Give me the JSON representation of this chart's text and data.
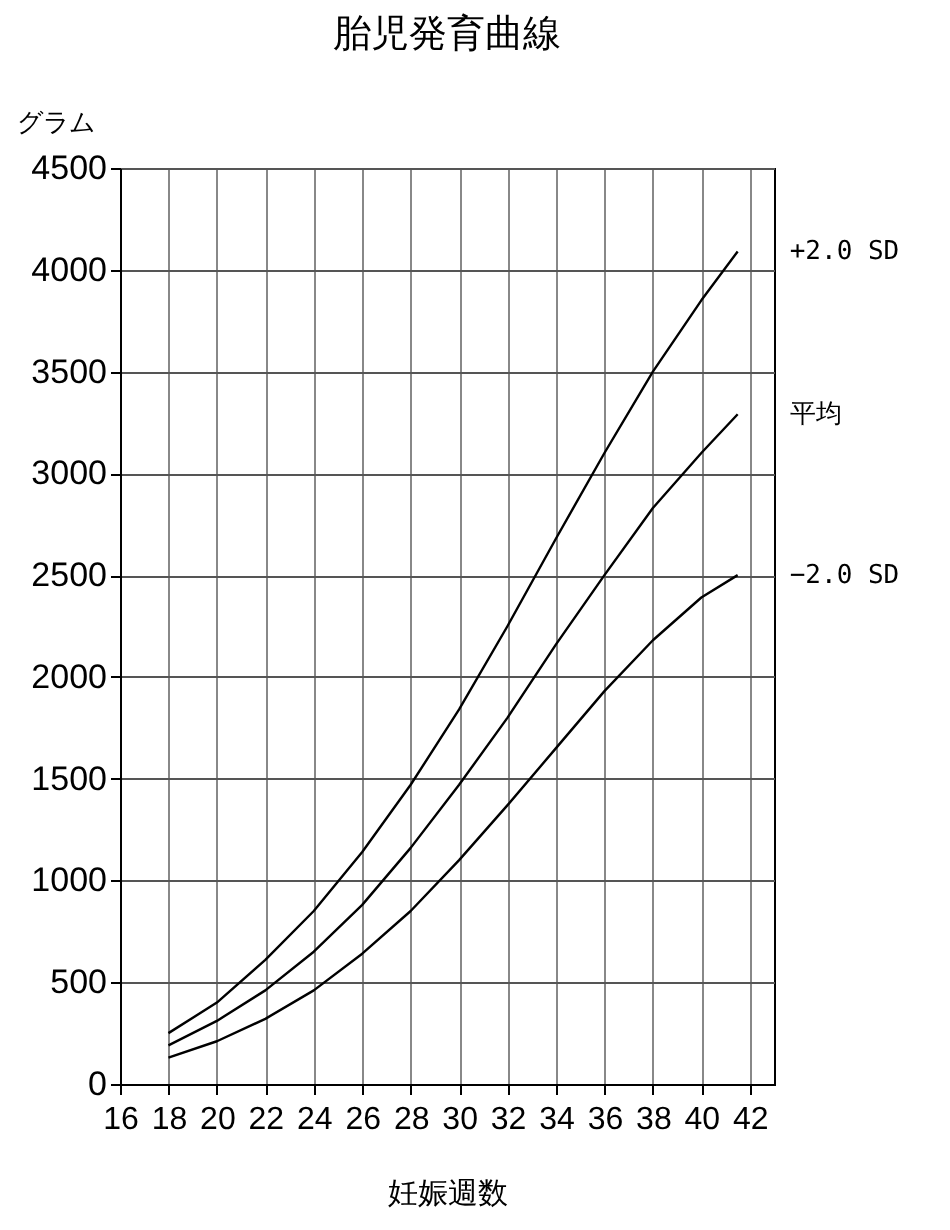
{
  "chart_data": {
    "type": "line",
    "title": "胎児発育曲線",
    "xlabel": "妊娠週数",
    "ylabel": "グラム",
    "x": [
      18,
      20,
      22,
      24,
      26,
      28,
      30,
      32,
      34,
      36,
      38,
      40,
      41.5
    ],
    "series": [
      {
        "name": "+2.0 SD",
        "color": "#000000",
        "values": [
          250,
          400,
          610,
          850,
          1140,
          1470,
          1840,
          2250,
          2680,
          3100,
          3500,
          3850,
          4090
        ]
      },
      {
        "name": "平均",
        "color": "#000000",
        "values": [
          190,
          310,
          460,
          650,
          880,
          1160,
          1470,
          1800,
          2160,
          2500,
          2830,
          3100,
          3290
        ]
      },
      {
        "name": "−2.0 SD",
        "color": "#000000",
        "values": [
          130,
          210,
          320,
          460,
          640,
          850,
          1100,
          1370,
          1650,
          1930,
          2180,
          2390,
          2500
        ]
      }
    ],
    "xlim": [
      16,
      43
    ],
    "xticks": [
      16,
      18,
      20,
      22,
      24,
      26,
      28,
      30,
      32,
      34,
      36,
      38,
      40,
      42
    ],
    "ylim": [
      0,
      4500
    ],
    "yticks": [
      0,
      500,
      1000,
      1500,
      2000,
      2500,
      3000,
      3500,
      4000,
      4500
    ],
    "grid": true,
    "legend": false,
    "marker": "none",
    "line_style": "solid"
  }
}
